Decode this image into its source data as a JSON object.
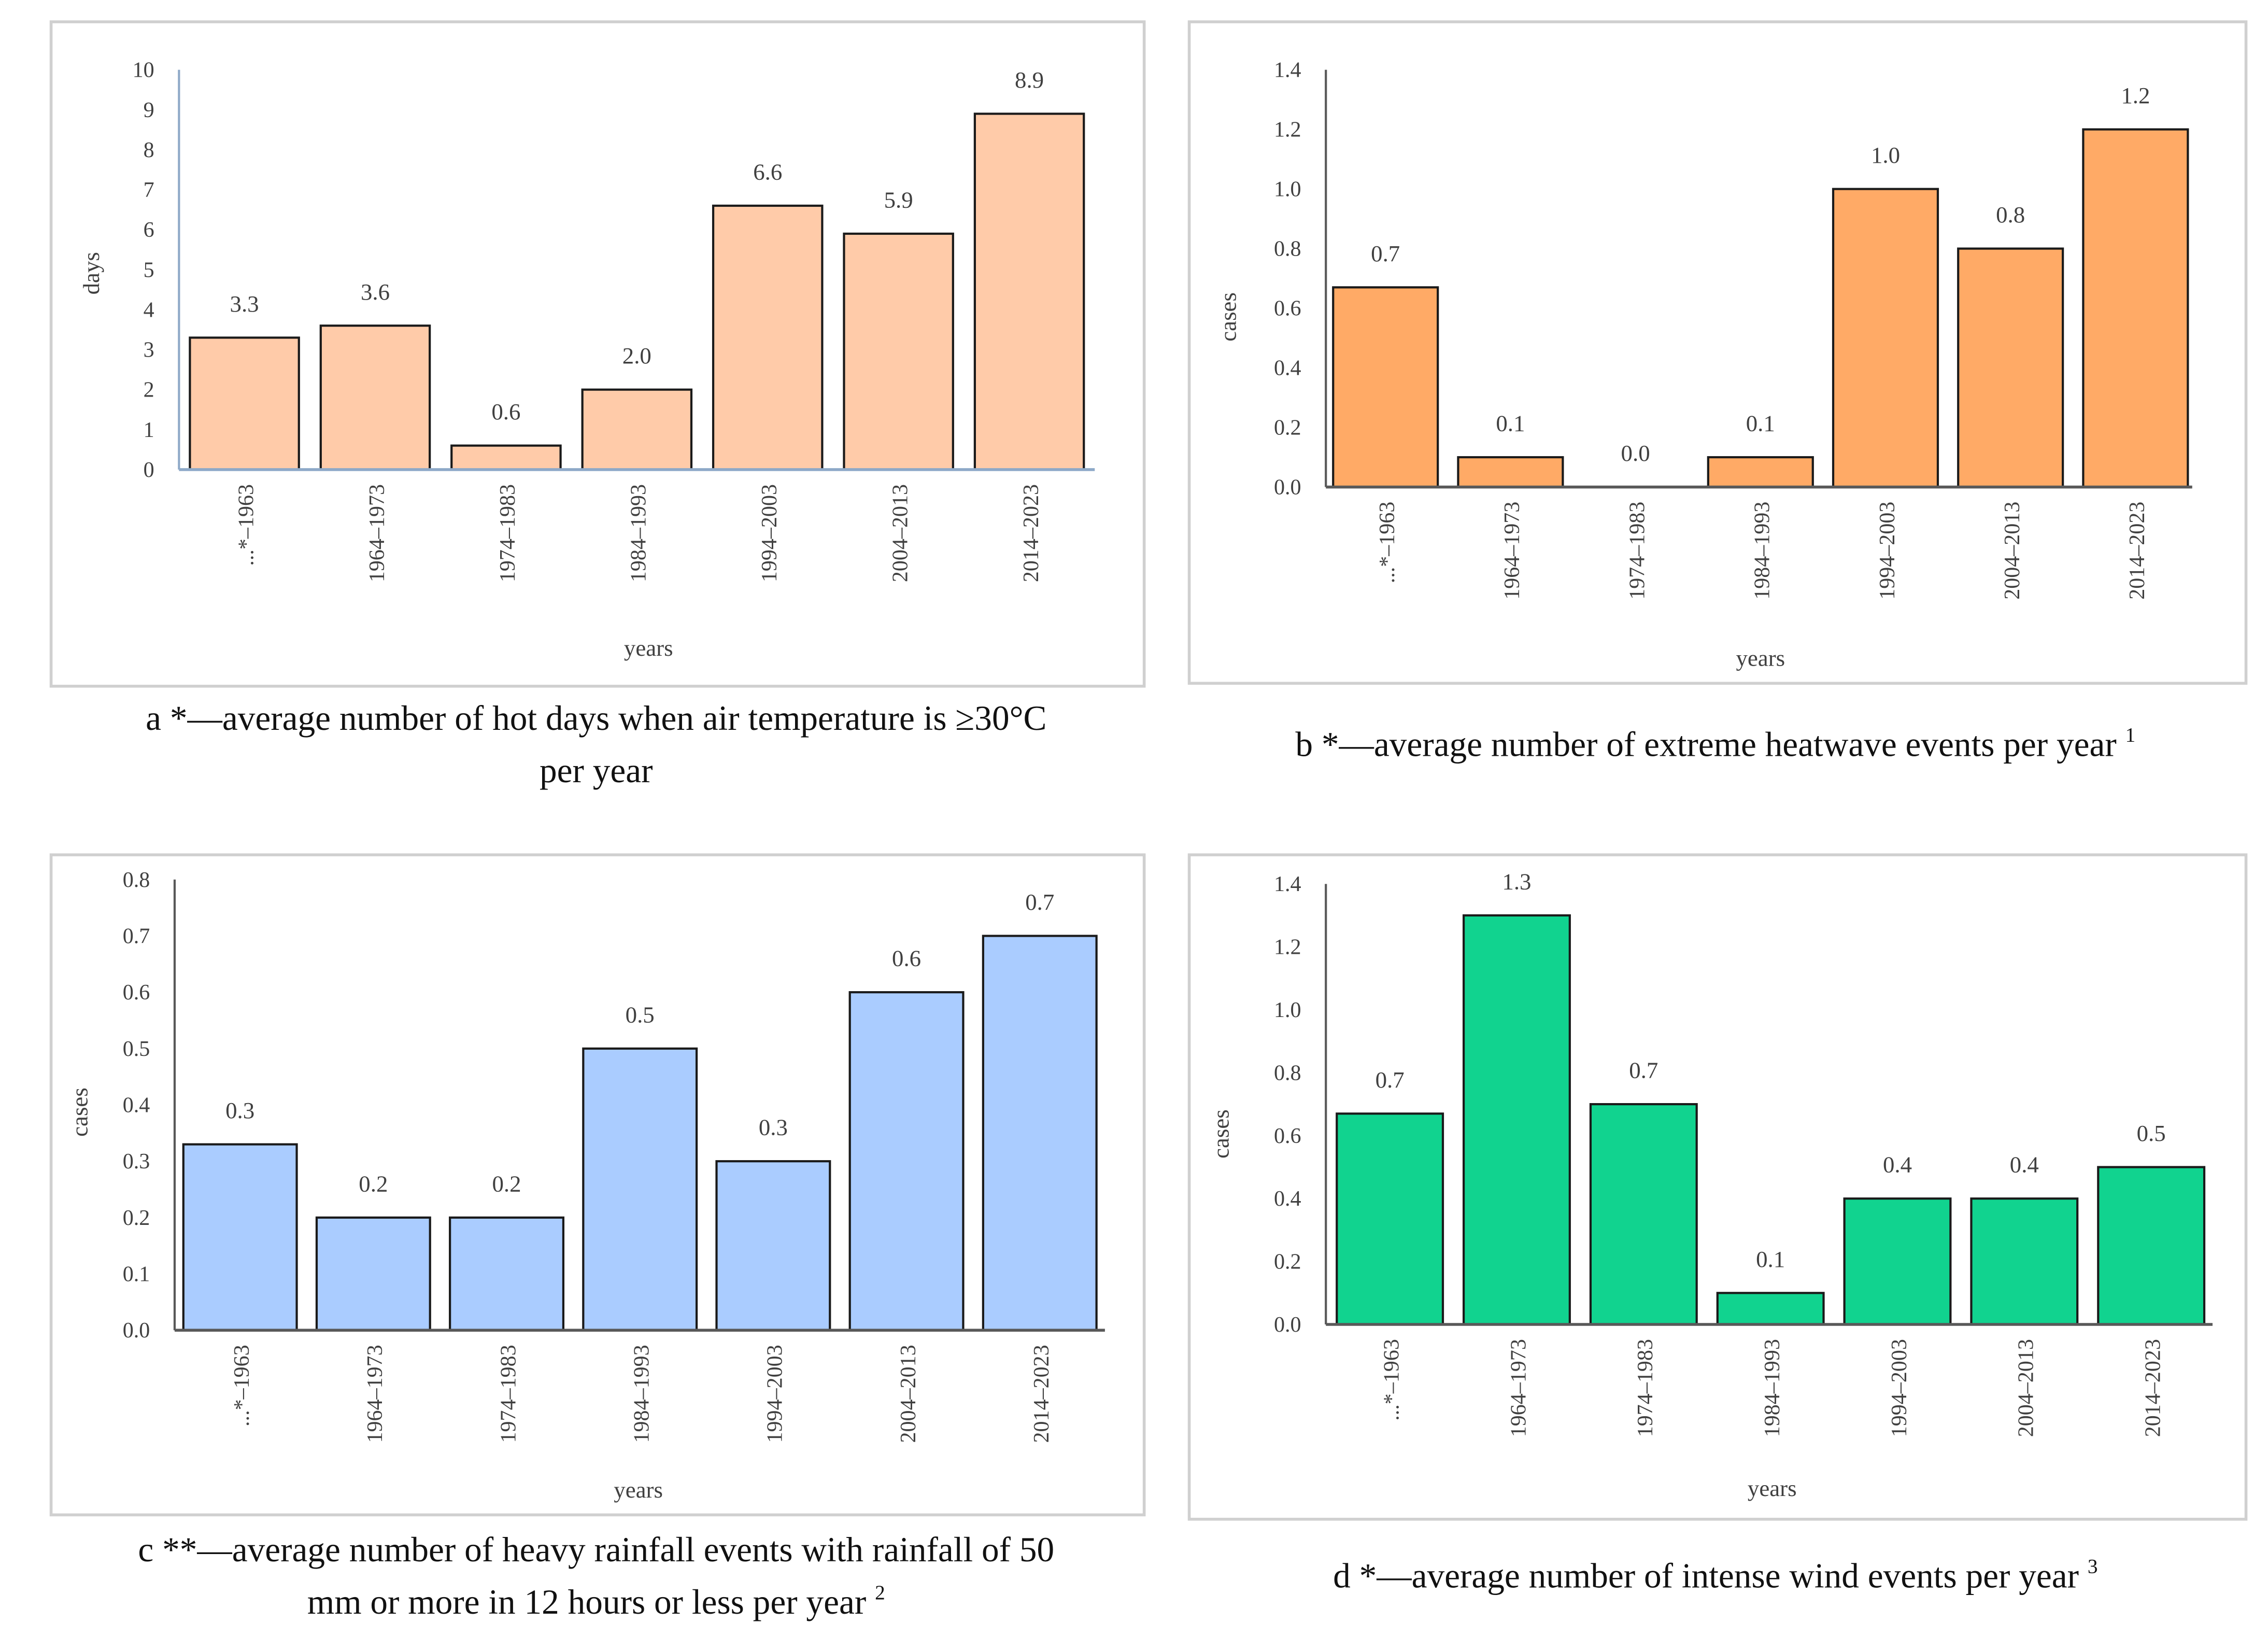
{
  "chart_data": [
    {
      "type": "bar",
      "id": "a",
      "caption_lines": [
        "a *—average number of hot days when air temperature is ≥30°C",
        "per year"
      ],
      "caption_sup": "",
      "xlabel": "years",
      "ylabel": "days",
      "categories": [
        "...*–1963",
        "1964–1973",
        "1974–1983",
        "1984–1993",
        "1994–2003",
        "2004–2013",
        "2014–2023"
      ],
      "values": [
        3.3,
        3.6,
        0.6,
        2.0,
        6.6,
        5.9,
        8.9
      ],
      "data_labels": [
        "3.3",
        "3.6",
        "0.6",
        "2.0",
        "6.6",
        "5.9",
        "8.9"
      ],
      "ylim": [
        0,
        10
      ],
      "ytick_step": 1,
      "ytick_decimals": 0,
      "bar_color": "#FFCBA9",
      "axis_color": "#8EA9C8",
      "grid": false
    },
    {
      "type": "bar",
      "id": "b",
      "caption_lines": [
        "b *—average number of extreme heatwave events per year"
      ],
      "caption_sup": "1",
      "xlabel": "years",
      "ylabel": "cases",
      "categories": [
        "...*–1963",
        "1964–1973",
        "1974–1983",
        "1984–1993",
        "1994–2003",
        "2004–2013",
        "2014–2023"
      ],
      "values": [
        0.67,
        0.1,
        0.0,
        0.1,
        1.0,
        0.8,
        1.2
      ],
      "data_labels": [
        "0.7",
        "0.1",
        "0.0",
        "0.1",
        "1.0",
        "0.8",
        "1.2"
      ],
      "ylim": [
        0,
        1.4
      ],
      "ytick_step": 0.2,
      "ytick_decimals": 1,
      "bar_color": "#FFAA66",
      "axis_color": "#595959",
      "grid": false
    },
    {
      "type": "bar",
      "id": "c",
      "caption_lines": [
        "c **—average number of heavy rainfall events with rainfall of 50",
        "mm or more in 12 hours or less per year"
      ],
      "caption_sup": "2",
      "xlabel": "years",
      "ylabel": "cases",
      "categories": [
        "...*–1963",
        "1964–1973",
        "1974–1983",
        "1984–1993",
        "1994–2003",
        "2004–2013",
        "2014–2023"
      ],
      "values": [
        0.33,
        0.2,
        0.2,
        0.5,
        0.3,
        0.6,
        0.7
      ],
      "data_labels": [
        "0.3",
        "0.2",
        "0.2",
        "0.5",
        "0.3",
        "0.6",
        "0.7"
      ],
      "ylim": [
        0,
        0.8
      ],
      "ytick_step": 0.1,
      "ytick_decimals": 1,
      "bar_color": "#AACCFF",
      "axis_color": "#595959",
      "grid": false
    },
    {
      "type": "bar",
      "id": "d",
      "caption_lines": [
        "d *—average number of intense wind events per year"
      ],
      "caption_sup": "3",
      "xlabel": "years",
      "ylabel": "cases",
      "categories": [
        "...*–1963",
        "1964–1973",
        "1974–1983",
        "1984–1993",
        "1994–2003",
        "2004–2013",
        "2014–2023"
      ],
      "values": [
        0.67,
        1.3,
        0.7,
        0.1,
        0.4,
        0.4,
        0.5
      ],
      "data_labels": [
        "0.7",
        "1.3",
        "0.7",
        "0.1",
        "0.4",
        "0.4",
        "0.5"
      ],
      "ylim": [
        0,
        1.4
      ],
      "ytick_step": 0.2,
      "ytick_decimals": 1,
      "bar_color": "#11D38F",
      "axis_color": "#595959",
      "grid": false
    }
  ]
}
